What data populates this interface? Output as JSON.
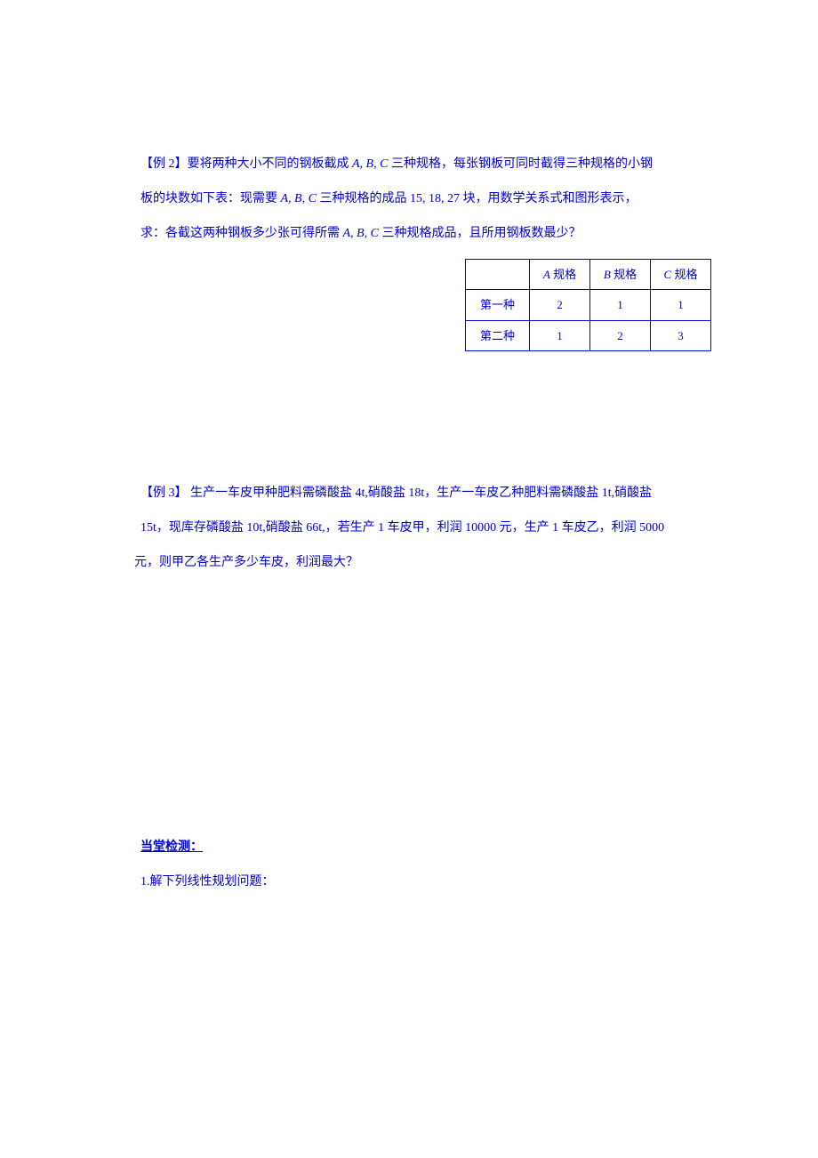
{
  "example2": {
    "line1_prefix": "【例 2】要将两种大小不同的钢板截成 ",
    "abc1": "A, B, C",
    "line1_suffix": " 三种规格，每张钢板可同时截得三种规格的小钢",
    "line2_prefix": "板的块数如下表：现需要 ",
    "abc2": "A, B, C",
    "line2_suffix": " 三种规格的成品 15, 18, 27 块，用数学关系式和图形表示，",
    "line3_prefix": "求：各截这两种钢板多少张可得所需 ",
    "abc3": "A, B, C",
    "line3_suffix": " 三种规格成品，且所用钢板数最少？"
  },
  "table": {
    "header_empty": "",
    "header_a_prefix": "A",
    "header_a_suffix": " 规格",
    "header_b_prefix": "B",
    "header_b_suffix": " 规格",
    "header_c_prefix": "C",
    "header_c_suffix": " 规格",
    "row1_label": "第一种",
    "row1_a": "2",
    "row1_b": "1",
    "row1_c": "1",
    "row2_label": "第二种",
    "row2_a": "1",
    "row2_b": "2",
    "row2_c": "3"
  },
  "example3": {
    "line1": "【例 3】 生产一车皮甲种肥料需磷酸盐 4t,硝酸盐 18t，生产一车皮乙种肥料需磷酸盐 1t,硝酸盐",
    "line2": "15t，现库存磷酸盐 10t,硝酸盐 66t,，若生产 1 车皮甲，利润 10000 元，生产 1 车皮乙，利润 5000",
    "line3": "元，则甲乙各生产多少车皮，利润最大？"
  },
  "section": {
    "heading": "当堂检测：",
    "q1": "1.解下列线性规划问题："
  }
}
